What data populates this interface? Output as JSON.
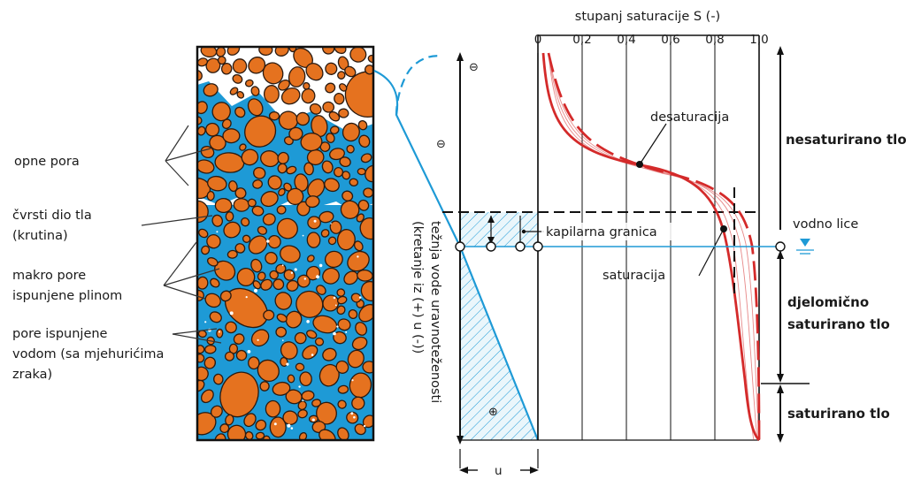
{
  "colors": {
    "grain": "#e5721f",
    "water": "#1e9ad6",
    "curve": "#d42a2a",
    "suction": "#1e9ad6"
  },
  "left_labels": {
    "membranes": "opne pora",
    "solids_1": "čvrsti dio tla",
    "solids_2": "(krutina)",
    "gas_1": "makro pore",
    "gas_2": "ispunjene plinom",
    "water_1": "pore ispunjene",
    "water_2": "vodom (sa mjehurićima",
    "water_3": "zraka)"
  },
  "suction_axis": {
    "label_1": "težnja vode uravnoteženosti",
    "label_2": "(kretanje iz (+) u (-))",
    "negative_symbol": "⊖",
    "positive_symbol": "⊕",
    "u_label": "u"
  },
  "saturation_axis": {
    "title": "stupanj saturacije S (-)",
    "ticks": [
      "0",
      "0,2",
      "0,4",
      "0,6",
      "0,8",
      "1,0"
    ]
  },
  "curve_labels": {
    "desaturation": "desaturacija",
    "capillary": "kapilarna granica",
    "saturation": "saturacija"
  },
  "zones": {
    "unsaturated": "nesaturirano tlo",
    "water_table": "vodno lice",
    "partial_1": "djelomično",
    "partial_2": "saturirano tlo",
    "saturated": "saturirano tlo"
  }
}
